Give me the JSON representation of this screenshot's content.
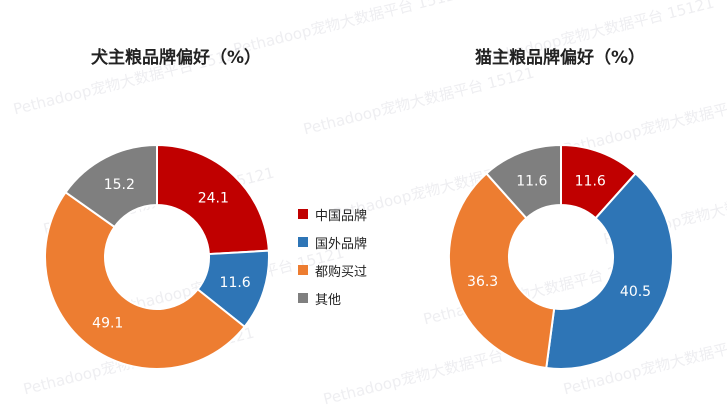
{
  "watermark_text": "Pethadoop宠物大数据平台 15121",
  "legend": [
    {
      "label": "中国品牌",
      "color": "#c00000"
    },
    {
      "label": "国外品牌",
      "color": "#2e75b6"
    },
    {
      "label": "都购买过",
      "color": "#ed7d31"
    },
    {
      "label": "其他",
      "color": "#7f7f7f"
    }
  ],
  "chart_data": [
    {
      "type": "pie",
      "title": "犬主粮品牌偏好（%）",
      "categories": [
        "中国品牌",
        "国外品牌",
        "都购买过",
        "其他"
      ],
      "values": [
        24.1,
        11.6,
        49.1,
        15.2
      ],
      "value_labels": [
        "24.1",
        "11.6",
        "49.1",
        "15.2"
      ],
      "donut": true,
      "legend_position": "right"
    },
    {
      "type": "pie",
      "title": "猫主粮品牌偏好（%）",
      "categories": [
        "中国品牌",
        "国外品牌",
        "都购买过",
        "其他"
      ],
      "values": [
        11.6,
        40.5,
        36.3,
        11.6
      ],
      "value_labels": [
        "11.6",
        "40.5",
        "36.3",
        "11.6"
      ],
      "donut": true,
      "legend_position": "right"
    }
  ]
}
